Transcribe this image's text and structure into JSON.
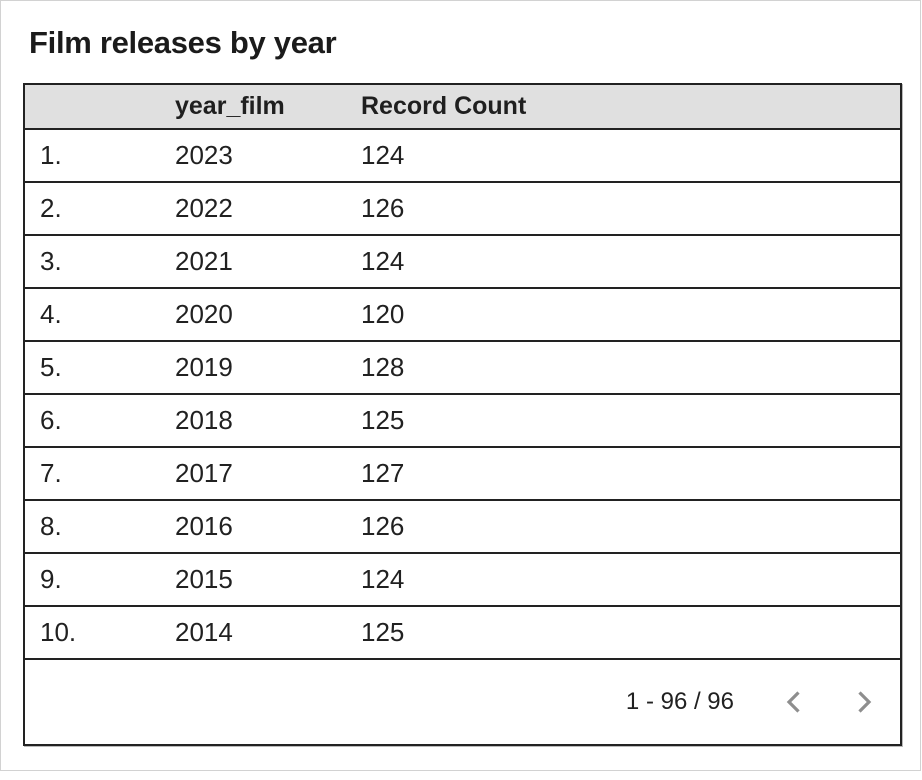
{
  "title": "Film releases by year",
  "table": {
    "columns": {
      "index": "",
      "year": "year_film",
      "count": "Record Count"
    },
    "rows": [
      {
        "index": "1.",
        "year": "2023",
        "count": "124"
      },
      {
        "index": "2.",
        "year": "2022",
        "count": "126"
      },
      {
        "index": "3.",
        "year": "2021",
        "count": "124"
      },
      {
        "index": "4.",
        "year": "2020",
        "count": "120"
      },
      {
        "index": "5.",
        "year": "2019",
        "count": "128"
      },
      {
        "index": "6.",
        "year": "2018",
        "count": "125"
      },
      {
        "index": "7.",
        "year": "2017",
        "count": "127"
      },
      {
        "index": "8.",
        "year": "2016",
        "count": "126"
      },
      {
        "index": "9.",
        "year": "2015",
        "count": "124"
      },
      {
        "index": "10.",
        "year": "2014",
        "count": "125"
      }
    ]
  },
  "pagination": {
    "range_label": "1 - 96 / 96",
    "prev_icon": "chevron-left",
    "next_icon": "chevron-right"
  },
  "colors": {
    "header_bg": "#e0e0e0",
    "table_border": "#222222",
    "text": "#212121",
    "chevron": "#8e8e8e",
    "frame_border": "#d2d2d2"
  }
}
